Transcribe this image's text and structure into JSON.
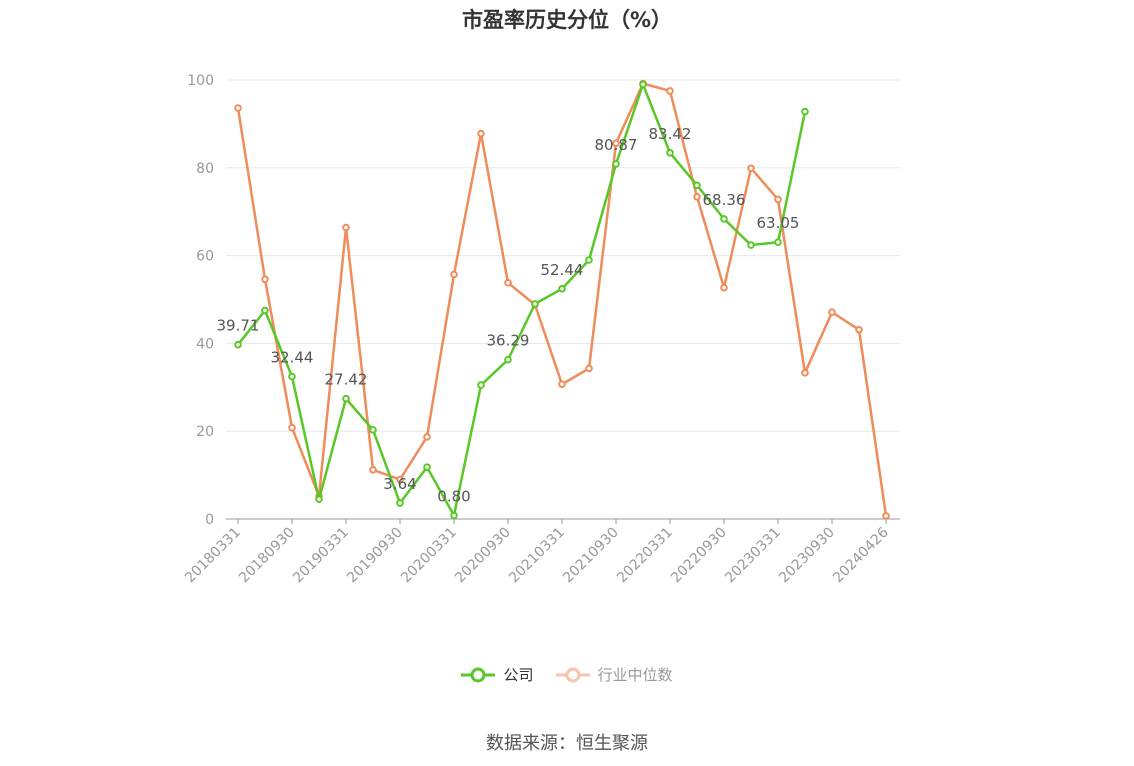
{
  "title": "市盈率历史分位（%）",
  "source": "数据来源：恒生聚源",
  "colors": {
    "company": "#5ac728",
    "industry": "#ef8c5a",
    "grid": "#e6e8ef",
    "axis": "#999999"
  },
  "chart_data": {
    "type": "line",
    "title": "市盈率历史分位（%）",
    "x": [
      "20180331",
      "20180630",
      "20180930",
      "20181231",
      "20190331",
      "20190630",
      "20190930",
      "20191231",
      "20200331",
      "20200630",
      "20200930",
      "20201231",
      "20210331",
      "20210630",
      "20210930",
      "20211231",
      "20220331",
      "20220630",
      "20220930",
      "20221231",
      "20230331",
      "20230630",
      "20230930",
      "20231231",
      "20240426"
    ],
    "x_tick_labels": [
      "20180331",
      "20180930",
      "20190331",
      "20190930",
      "20200331",
      "20200930",
      "20210331",
      "20210930",
      "20220331",
      "20220930",
      "20230331",
      "20230930",
      "20240426"
    ],
    "y_ticks": [
      0,
      20,
      40,
      60,
      80,
      100
    ],
    "ylim": [
      0,
      100
    ],
    "grid": true,
    "legend_position": "bottom",
    "series": [
      {
        "name": "公司",
        "values": [
          39.71,
          47.5,
          32.44,
          4.5,
          27.42,
          20.3,
          3.64,
          11.8,
          0.8,
          30.5,
          36.29,
          49.0,
          52.44,
          59.0,
          80.87,
          99.0,
          83.42,
          76.0,
          68.36,
          62.4,
          63.05,
          92.8,
          null,
          null,
          null
        ],
        "labels": [
          "39.71",
          null,
          "32.44",
          null,
          "27.42",
          null,
          "3.64",
          null,
          "0.80",
          null,
          "36.29",
          null,
          "52.44",
          null,
          "80.87",
          null,
          "83.42",
          null,
          "68.36",
          null,
          "63.05",
          null,
          null,
          null,
          null
        ]
      },
      {
        "name": "行业中位数",
        "values": [
          93.6,
          54.6,
          20.8,
          5.2,
          66.4,
          11.2,
          9.0,
          18.7,
          55.7,
          87.8,
          53.8,
          48.8,
          30.7,
          34.3,
          85.6,
          99.2,
          97.5,
          73.4,
          52.7,
          79.9,
          72.8,
          33.3,
          47.1,
          43.1,
          0.7
        ]
      }
    ]
  }
}
